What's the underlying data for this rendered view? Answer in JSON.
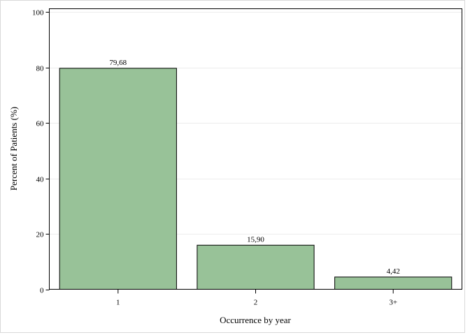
{
  "chart_data": {
    "type": "bar",
    "title": "",
    "xlabel": "Occurrence by year",
    "ylabel": "Percent of Patients (%)",
    "categories": [
      "1",
      "2",
      "3+"
    ],
    "values": [
      79.68,
      15.9,
      4.42
    ],
    "value_labels": [
      "79,68",
      "15,90",
      "4,42"
    ],
    "ylim": [
      0,
      100
    ],
    "yticks": [
      0,
      20,
      40,
      60,
      80,
      100
    ],
    "ytick_labels": [
      "0",
      "20",
      "40",
      "60",
      "80",
      "100"
    ],
    "grid": true,
    "legend": "none",
    "colors": {
      "bar_fill": "#98c298",
      "bar_stroke": "#000000",
      "grid": "#ececec"
    }
  }
}
